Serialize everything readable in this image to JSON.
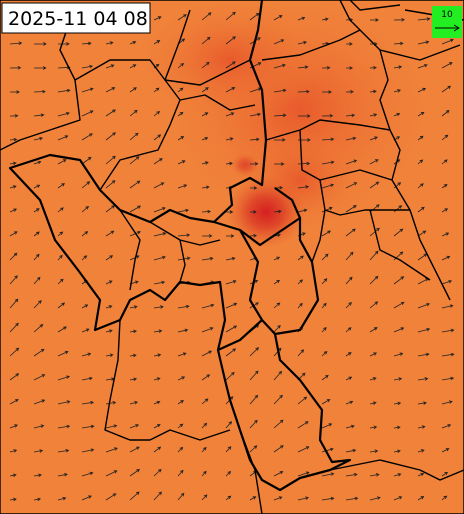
{
  "header": {
    "timestamp": "2025-11 04 08"
  },
  "legend": {
    "label": "10"
  }
}
